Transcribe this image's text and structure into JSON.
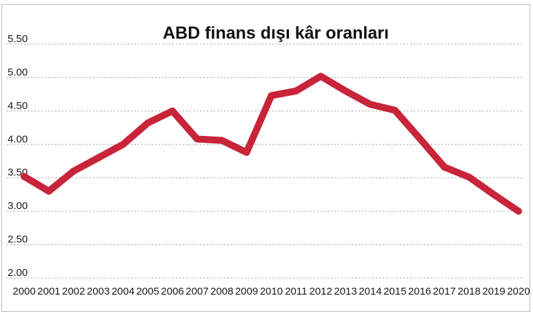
{
  "chart_data": {
    "type": "line",
    "title": "ABD finans dışı kâr oranları",
    "xlabel": "",
    "ylabel": "",
    "x": [
      "2000",
      "2001",
      "2002",
      "2003",
      "2004",
      "2005",
      "2006",
      "2007",
      "2008",
      "2009",
      "2010",
      "2011",
      "2012",
      "2013",
      "2014",
      "2015",
      "2016",
      "2017",
      "2018",
      "2019",
      "2020"
    ],
    "series": [
      {
        "values": [
          3.52,
          3.3,
          3.6,
          3.8,
          4.0,
          4.32,
          4.5,
          4.08,
          4.06,
          3.88,
          4.73,
          4.8,
          5.02,
          4.8,
          4.6,
          4.51,
          4.09,
          3.66,
          3.51,
          3.25,
          3.0
        ],
        "color": "#c8243a"
      }
    ],
    "yticks": [
      "2.00",
      "2.50",
      "3.00",
      "3.50",
      "4.00",
      "4.50",
      "5.00",
      "5.50"
    ],
    "ylim": [
      2.0,
      5.5
    ],
    "grid": true,
    "legend": "none"
  }
}
